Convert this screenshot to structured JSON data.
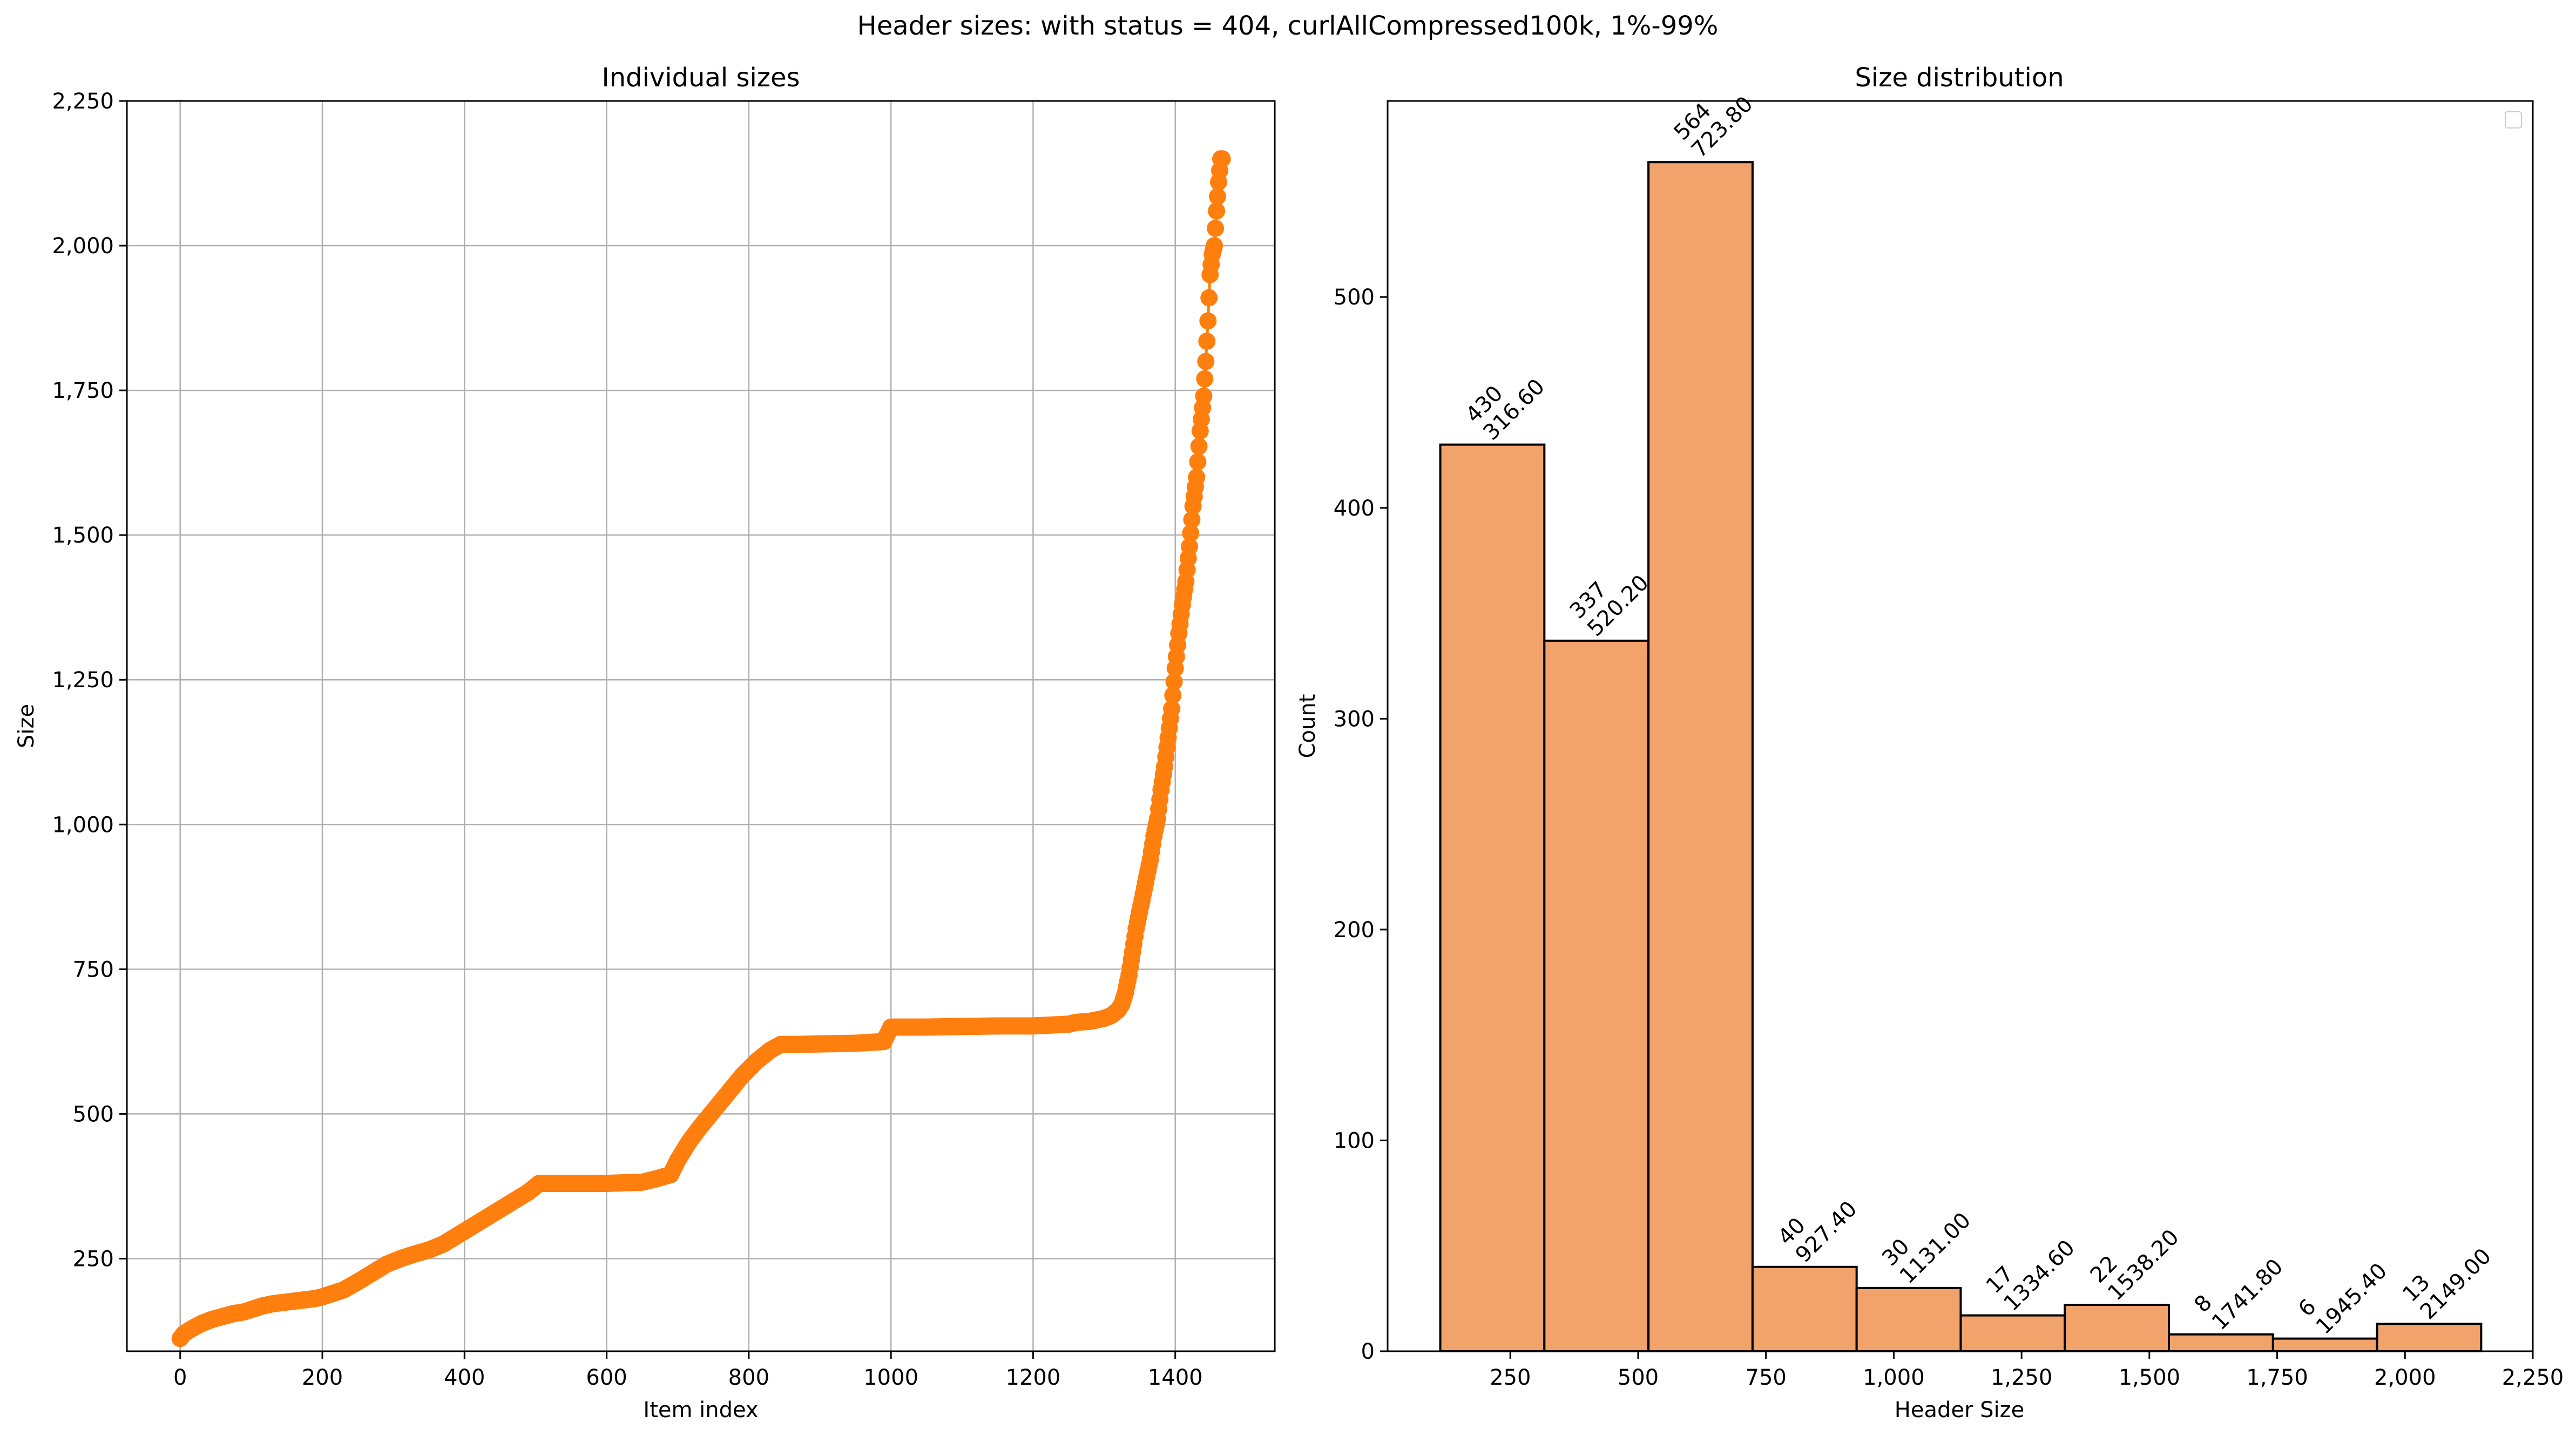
{
  "suptitle": "Header sizes: with status = 404, curlAllCompressed100k, 1%-99%",
  "chart_data": [
    {
      "type": "line",
      "title": "Individual sizes",
      "xlabel": "Item index",
      "ylabel": "Size",
      "xlim": [
        -75,
        1540
      ],
      "ylim": [
        90,
        2250
      ],
      "xticks": [
        0,
        200,
        400,
        600,
        800,
        1000,
        1200,
        1400
      ],
      "xtick_labels": [
        "0",
        "200",
        "400",
        "600",
        "800",
        "1000",
        "1200",
        "1400"
      ],
      "yticks": [
        250,
        500,
        750,
        1000,
        1250,
        1500,
        1750,
        2000,
        2250
      ],
      "ytick_labels": [
        "250",
        "500",
        "750",
        "1,000",
        "1,250",
        "1,500",
        "1,750",
        "2,000",
        "2,250"
      ],
      "grid": true,
      "color": "#ff7f0e",
      "series": [
        {
          "x": [
            0,
            5,
            15,
            30,
            45,
            60,
            75,
            90,
            100,
            115,
            130,
            150,
            170,
            190,
            200,
            210,
            230,
            250,
            270,
            290,
            310,
            330,
            350,
            370,
            390,
            410,
            430,
            450,
            470,
            490,
            505,
            550,
            600,
            650,
            670,
            690,
            700,
            715,
            730,
            750,
            770,
            790,
            810,
            830,
            845,
            870,
            900,
            950,
            990,
            1000,
            1050,
            1100,
            1150,
            1200,
            1250,
            1260,
            1280,
            1300,
            1310,
            1320,
            1325,
            1330,
            1335,
            1340,
            1345,
            1350,
            1355,
            1360,
            1365,
            1370,
            1375,
            1380,
            1385,
            1390,
            1395,
            1400,
            1405,
            1410,
            1415,
            1420,
            1425,
            1430,
            1435,
            1440,
            1443,
            1446,
            1449,
            1452,
            1455,
            1458,
            1461,
            1464,
            1466
          ],
          "y": [
            112,
            120,
            128,
            138,
            145,
            150,
            155,
            158,
            162,
            168,
            172,
            175,
            178,
            181,
            184,
            188,
            196,
            210,
            225,
            240,
            250,
            258,
            265,
            275,
            290,
            305,
            320,
            335,
            350,
            365,
            380,
            380,
            380,
            382,
            388,
            395,
            420,
            450,
            475,
            505,
            535,
            565,
            590,
            610,
            620,
            620,
            621,
            622,
            625,
            650,
            650,
            651,
            652,
            652,
            655,
            658,
            660,
            665,
            670,
            680,
            690,
            710,
            740,
            780,
            820,
            850,
            880,
            910,
            940,
            980,
            1010,
            1060,
            1100,
            1150,
            1200,
            1270,
            1330,
            1380,
            1420,
            1480,
            1550,
            1600,
            1680,
            1740,
            1800,
            1870,
            1950,
            1985,
            2000,
            2060,
            2110,
            2150,
            2150
          ]
        }
      ]
    },
    {
      "type": "histogram",
      "title": "Size distribution",
      "xlabel": "Header Size",
      "ylabel": "Count",
      "xlim": [
        10,
        2250
      ],
      "ylim": [
        0,
        593
      ],
      "xticks": [
        250,
        500,
        750,
        1000,
        1250,
        1500,
        1750,
        2000,
        2250
      ],
      "xtick_labels": [
        "250",
        "500",
        "750",
        "1,000",
        "1,250",
        "1,500",
        "1,750",
        "2,000",
        "2,250"
      ],
      "yticks": [
        0,
        100,
        200,
        300,
        400,
        500
      ],
      "ytick_labels": [
        "0",
        "100",
        "200",
        "300",
        "400",
        "500"
      ],
      "bar_color": "#f2a26b",
      "bin_edges": [
        113,
        316.6,
        520.2,
        723.8,
        927.4,
        1131.0,
        1334.6,
        1538.2,
        1741.8,
        1945.4,
        2149.0
      ],
      "counts": [
        430,
        337,
        564,
        40,
        30,
        17,
        22,
        8,
        6,
        13
      ],
      "bar_labels": [
        "430\n316.60",
        "337\n520.20",
        "564\n723.80",
        "40\n927.40",
        "30\n1131.00",
        "17\n1334.60",
        "22\n1538.20",
        "8\n1741.80",
        "6\n1945.40",
        "13\n2149.00"
      ],
      "legend": "top-right (empty)"
    }
  ]
}
